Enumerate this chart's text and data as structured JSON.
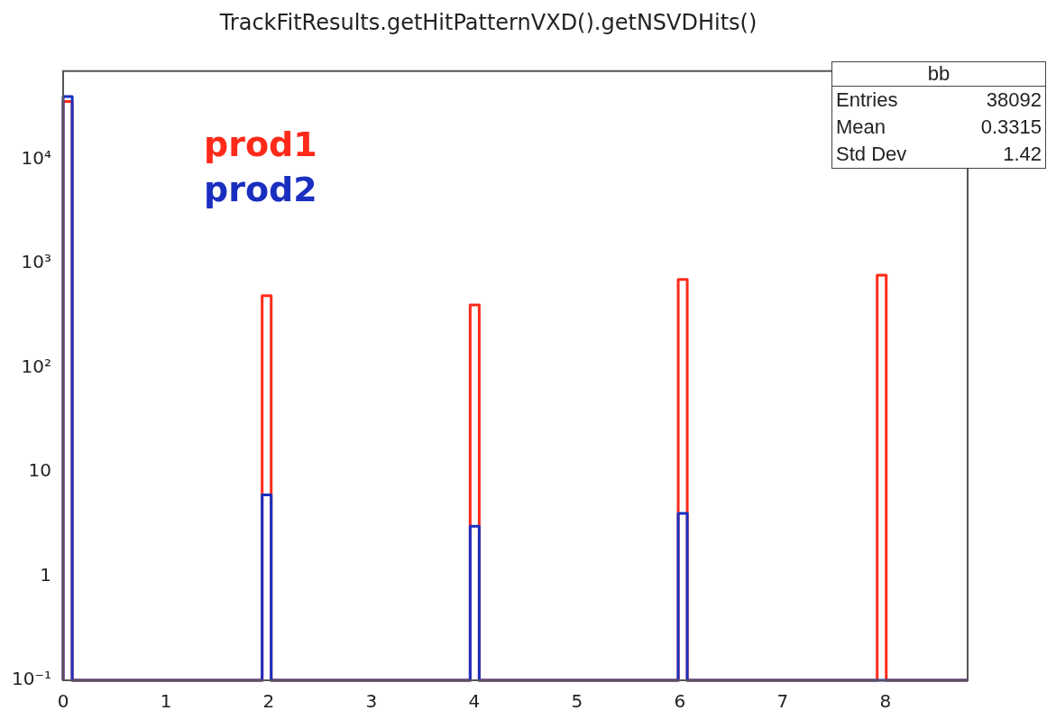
{
  "chart_data": {
    "type": "histogram",
    "title": "TrackFitResults.getHitPatternVXD().getNSVDHits()",
    "bins": [
      0,
      0.088,
      1.936,
      2.024,
      3.96,
      4.048,
      5.984,
      6.072,
      7.92,
      8.008,
      8.8
    ],
    "series": [
      {
        "name": "prod1",
        "color": "#ff2a1a",
        "values": [
          35730,
          null,
          490,
          null,
          400,
          null,
          700,
          null,
          770,
          null
        ]
      },
      {
        "name": "prod2",
        "color": "#1a2fc0",
        "values": [
          40000,
          null,
          6,
          null,
          3,
          null,
          4,
          null,
          null,
          null
        ]
      }
    ],
    "log": "y",
    "xlim": [
      0,
      8.8
    ],
    "xticks": [
      0,
      1,
      2,
      3,
      4,
      5,
      6,
      7,
      8
    ],
    "ylim": [
      0.1,
      70000
    ],
    "yticks": [
      {
        "value": 0.1,
        "label": "10⁻¹"
      },
      1,
      10,
      {
        "value": 100,
        "label": "10²"
      },
      {
        "value": 1000,
        "label": "10³"
      },
      {
        "value": 10000,
        "label": "10⁴"
      }
    ],
    "grid": false,
    "legend": "top left",
    "annotations": [
      "bb",
      "Entries",
      "38092",
      "Mean",
      "0.3315",
      "Std Dev",
      "1.42"
    ]
  }
}
